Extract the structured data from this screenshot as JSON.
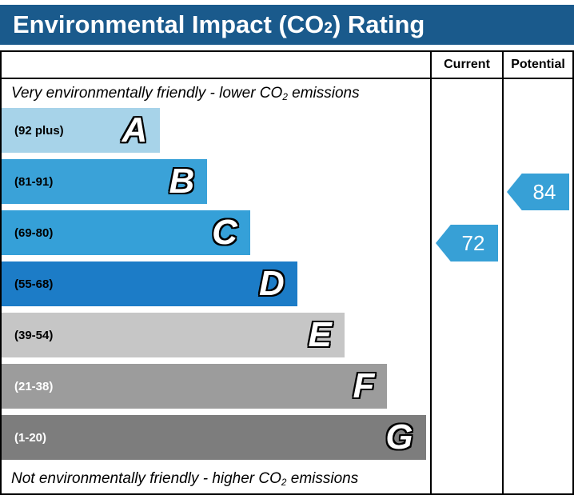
{
  "title": {
    "prefix": "Environmental Impact (CO",
    "sub": "2",
    "suffix": ") Rating"
  },
  "columns": {
    "current": "Current",
    "potential": "Potential"
  },
  "top_note": {
    "prefix": "Very environmentally friendly - lower CO",
    "sub": "2",
    "suffix": " emissions"
  },
  "bottom_note": {
    "prefix": "Not environmentally friendly - higher CO",
    "sub": "2",
    "suffix": " emissions"
  },
  "bands": [
    {
      "letter": "A",
      "range": "(92 plus)",
      "color": "#a7d3e9",
      "text_color": "#000000",
      "width_pct": 37
    },
    {
      "letter": "B",
      "range": "(81-91)",
      "color": "#3aa2d8",
      "text_color": "#000000",
      "width_pct": 48
    },
    {
      "letter": "C",
      "range": "(69-80)",
      "color": "#35a0d8",
      "text_color": "#000000",
      "width_pct": 58
    },
    {
      "letter": "D",
      "range": "(55-68)",
      "color": "#1c7cc7",
      "text_color": "#000000",
      "width_pct": 69
    },
    {
      "letter": "E",
      "range": "(39-54)",
      "color": "#c6c6c6",
      "text_color": "#000000",
      "width_pct": 80
    },
    {
      "letter": "F",
      "range": "(21-38)",
      "color": "#9c9c9c",
      "text_color": "#ffffff",
      "width_pct": 90
    },
    {
      "letter": "G",
      "range": "(1-20)",
      "color": "#7d7d7d",
      "text_color": "#ffffff",
      "width_pct": 99
    }
  ],
  "current": {
    "value": "72",
    "band_index": 2,
    "color": "#37a0d6"
  },
  "potential": {
    "value": "84",
    "band_index": 1,
    "color": "#37a0d6"
  },
  "theme": {
    "title_bar_color": "#1a5a8c",
    "border_color": "#000000"
  },
  "chart_data": {
    "type": "bar",
    "title": "Environmental Impact (CO2) Rating",
    "categories": [
      "A",
      "B",
      "C",
      "D",
      "E",
      "F",
      "G"
    ],
    "band_ranges": [
      "92 plus",
      "81-91",
      "69-80",
      "55-68",
      "39-54",
      "21-38",
      "1-20"
    ],
    "bar_lengths_pct": [
      37,
      48,
      58,
      69,
      80,
      90,
      99
    ],
    "series": [
      {
        "name": "Current",
        "value": 72,
        "band": "C"
      },
      {
        "name": "Potential",
        "value": 84,
        "band": "B"
      }
    ],
    "top_label": "Very environmentally friendly - lower CO2 emissions",
    "bottom_label": "Not environmentally friendly - higher CO2 emissions",
    "legend_position": "none",
    "grid": false
  }
}
